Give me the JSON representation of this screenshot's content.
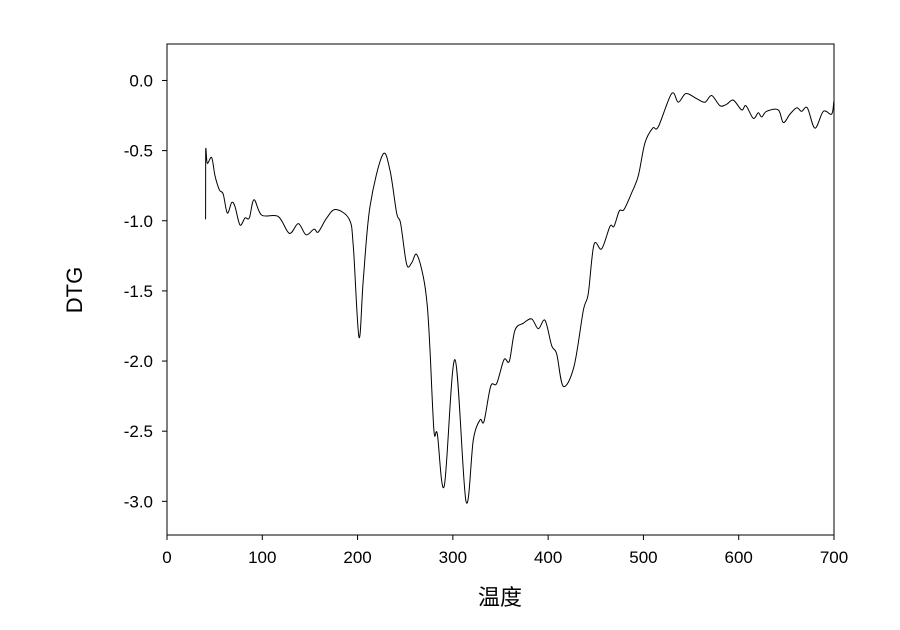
{
  "chart_data": {
    "type": "line",
    "title": "",
    "xlabel": "温度",
    "ylabel": "DTG",
    "xlim": [
      0,
      700
    ],
    "ylim": [
      -3.24,
      0.26
    ],
    "xticks": [
      0,
      100,
      200,
      300,
      400,
      500,
      600,
      700
    ],
    "xtick_labels": [
      "0",
      "100",
      "200",
      "300",
      "400",
      "500",
      "600",
      "700"
    ],
    "yticks": [
      0.0,
      -0.5,
      -1.0,
      -1.5,
      -2.0,
      -2.5,
      -3.0
    ],
    "ytick_labels": [
      "0.0",
      "-0.5",
      "-1.0",
      "-1.5",
      "-2.0",
      "-2.5",
      "-3.0"
    ],
    "grid": false,
    "line_color": "#000000",
    "series": [
      {
        "x": [
          40.5,
          40.6,
          42.3,
          46.9,
          50.4,
          55,
          59,
          63.3,
          67.9,
          71.4,
          76.6,
          81.9,
          86.4,
          91.3,
          99.4,
          116.8,
          128.4,
          137.8,
          145.9,
          154.3,
          158.8,
          167.6,
          177,
          191.3,
          195.5,
          201.5,
          206,
          213,
          226.3,
          234,
          241,
          245.2,
          251.5,
          256.8,
          262,
          269,
          273.2,
          276,
          280.2,
          283.7,
          291,
          302.2,
          313.8,
          321.5,
          328.5,
          332.7,
          339.7,
          346,
          353.7,
          359.3,
          365.2,
          374,
          382.7,
          389.7,
          396.7,
          403.7,
          409,
          415.9,
          427.1,
          436.9,
          442.1,
          448.1,
          456.2,
          464.9,
          469.1,
          474.7,
          479.6,
          487.7,
          494.6,
          501.6,
          509.7,
          515.6,
          529.6,
          536.6,
          544.7,
          555.9,
          564.6,
          571.6,
          580.3,
          587.3,
          594.3,
          603.1,
          607.6,
          615.3,
          620.5,
          624.1,
          629.3,
          641.5,
          646.8,
          653.8,
          660.8,
          666,
          672,
          680,
          688.8,
          697.5,
          699.8
        ],
        "y": [
          -0.99,
          -0.5,
          -0.59,
          -0.55,
          -0.68,
          -0.78,
          -0.81,
          -0.945,
          -0.87,
          -0.9,
          -1.03,
          -0.98,
          -0.98,
          -0.85,
          -0.96,
          -0.97,
          -1.09,
          -1.02,
          -1.1,
          -1.06,
          -1.08,
          -0.98,
          -0.92,
          -0.99,
          -1.18,
          -1.83,
          -1.42,
          -0.9,
          -0.53,
          -0.64,
          -0.945,
          -1.02,
          -1.31,
          -1.3,
          -1.24,
          -1.4,
          -1.61,
          -1.92,
          -2.5,
          -2.52,
          -2.89,
          -1.99,
          -3.0,
          -2.56,
          -2.42,
          -2.43,
          -2.18,
          -2.16,
          -1.99,
          -2.0,
          -1.78,
          -1.73,
          -1.7,
          -1.77,
          -1.71,
          -1.89,
          -1.95,
          -2.18,
          -2.04,
          -1.64,
          -1.52,
          -1.17,
          -1.2,
          -1.04,
          -1.04,
          -0.93,
          -0.92,
          -0.8,
          -0.68,
          -0.445,
          -0.34,
          -0.33,
          -0.093,
          -0.155,
          -0.093,
          -0.13,
          -0.155,
          -0.107,
          -0.18,
          -0.17,
          -0.14,
          -0.21,
          -0.18,
          -0.27,
          -0.23,
          -0.26,
          -0.22,
          -0.21,
          -0.3,
          -0.24,
          -0.195,
          -0.22,
          -0.195,
          -0.34,
          -0.22,
          -0.24,
          -0.15
        ]
      }
    ]
  }
}
